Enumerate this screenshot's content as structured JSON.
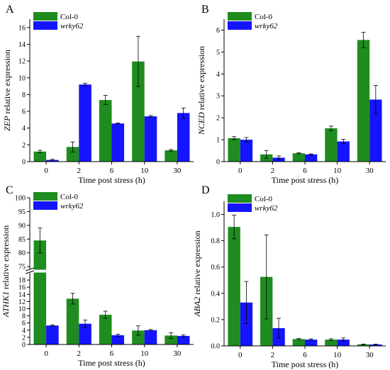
{
  "figure": {
    "x_axis_title": "Time post stress (h)",
    "categories": [
      "0",
      "2",
      "6",
      "10",
      "30"
    ]
  },
  "colors": {
    "col0": "#1e8c1e",
    "wrky62": "#1414ff",
    "axis": "#000000"
  },
  "chart_data": [
    {
      "panel": "A",
      "type": "bar",
      "ylabel_gene": "ZEP",
      "ylabel_rest": " relative expression",
      "xlabel": "Time post stress (h)",
      "categories": [
        "0",
        "2",
        "6",
        "10",
        "30"
      ],
      "series": [
        {
          "name": "Col-0",
          "values": [
            1.2,
            1.75,
            7.35,
            11.95,
            1.35
          ],
          "errors": [
            0.15,
            0.6,
            0.55,
            3.0,
            0.1
          ]
        },
        {
          "name": "wrky62",
          "values": [
            0.2,
            9.2,
            4.55,
            5.4,
            5.8
          ],
          "errors": [
            0.08,
            0.15,
            0.05,
            0.1,
            0.6
          ]
        }
      ],
      "ylim": [
        0,
        17
      ],
      "yticks": [
        0,
        2,
        4,
        6,
        8,
        10,
        12,
        14,
        16
      ],
      "legend": "top-left"
    },
    {
      "panel": "B",
      "type": "bar",
      "ylabel_gene": "NCED",
      "ylabel_rest": " relative expression",
      "xlabel": "Time post stress (h)",
      "categories": [
        "0",
        "2",
        "6",
        "10",
        "30"
      ],
      "series": [
        {
          "name": "Col-0",
          "values": [
            1.07,
            0.33,
            0.38,
            1.52,
            5.55
          ],
          "errors": [
            0.07,
            0.18,
            0.02,
            0.1,
            0.35
          ]
        },
        {
          "name": "wrky62",
          "values": [
            1.0,
            0.18,
            0.33,
            0.92,
            2.83
          ],
          "errors": [
            0.1,
            0.08,
            0.02,
            0.1,
            0.65
          ]
        }
      ],
      "ylim": [
        0,
        6.5
      ],
      "yticks": [
        0,
        1,
        2,
        3,
        4,
        5,
        6
      ],
      "legend": "top-left"
    },
    {
      "panel": "C",
      "type": "bar",
      "ylabel_gene": "ATHK1",
      "ylabel_rest": " relative expression",
      "xlabel": "Time post stress (h)",
      "categories": [
        "0",
        "2",
        "6",
        "10",
        "30"
      ],
      "series": [
        {
          "name": "Col-0",
          "values": [
            84.5,
            12.8,
            8.3,
            3.9,
            2.5
          ],
          "errors": [
            4.5,
            1.5,
            1.0,
            1.3,
            0.8
          ]
        },
        {
          "name": "wrky62",
          "values": [
            5.3,
            5.8,
            2.6,
            4.0,
            2.4
          ],
          "errors": [
            0.2,
            1.0,
            0.3,
            0.2,
            0.3
          ]
        }
      ],
      "ylim_lower": [
        0,
        20
      ],
      "ylim_upper": [
        74,
        100
      ],
      "yticks_lower": [
        0,
        2,
        4,
        6,
        8,
        10,
        12,
        14,
        16,
        18
      ],
      "yticks_upper": [
        75,
        80,
        85,
        90,
        95,
        100
      ],
      "legend": "top-left"
    },
    {
      "panel": "D",
      "type": "bar",
      "ylabel_gene": "ABA2",
      "ylabel_rest": " relative expression",
      "xlabel": "Time post stress (h)",
      "categories": [
        "0",
        "2",
        "6",
        "10",
        "30"
      ],
      "series": [
        {
          "name": "Col-0",
          "values": [
            0.905,
            0.525,
            0.052,
            0.048,
            0.012
          ],
          "errors": [
            0.09,
            0.32,
            0.004,
            0.006,
            0.002
          ]
        },
        {
          "name": "wrky62",
          "values": [
            0.33,
            0.135,
            0.048,
            0.048,
            0.011
          ],
          "errors": [
            0.16,
            0.075,
            0.006,
            0.012,
            0.002
          ]
        }
      ],
      "ylim": [
        0,
        1.1
      ],
      "yticks": [
        0.0,
        0.2,
        0.4,
        0.6,
        0.8,
        1.0
      ],
      "legend": "top-left"
    }
  ]
}
